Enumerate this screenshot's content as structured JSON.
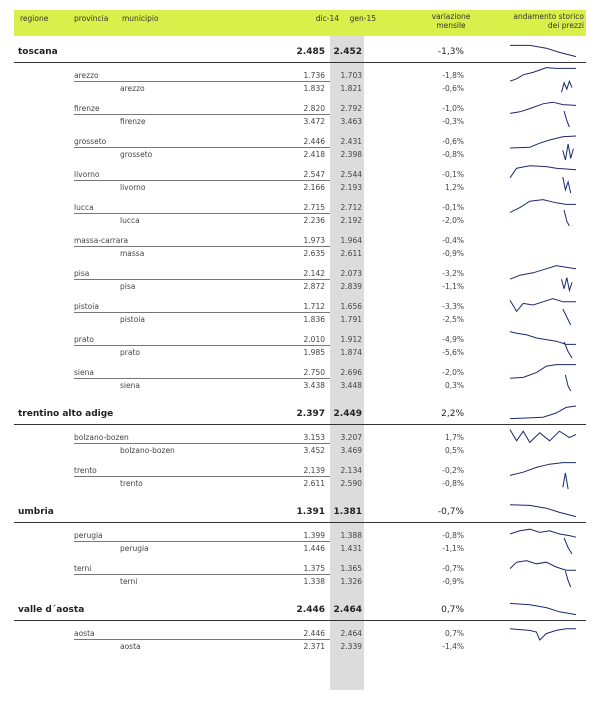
{
  "columns": {
    "regione": "regione",
    "provincia": "provincia",
    "municipio": "municipio",
    "dic14": "dic-14",
    "gen15": "gen-15",
    "variazione_l1": "variazione",
    "variazione_l2": "mensile",
    "andamento_l1": "andamento storico",
    "andamento_l2": "dei prezzi"
  },
  "rows": [
    {
      "type": "regione",
      "label": "toscana",
      "dic14": "2.485",
      "gen15": "2.452",
      "var": "-1,3%",
      "neg": true,
      "spark": [
        [
          0,
          0.1
        ],
        [
          0.3,
          0.1
        ],
        [
          0.55,
          0.3
        ],
        [
          0.75,
          0.6
        ],
        [
          1,
          0.9
        ]
      ]
    },
    {
      "type": "provincia",
      "label": "arezzo",
      "dic14": "1.736",
      "gen15": "1.703",
      "var": "-1,8%",
      "neg": true,
      "spark": [
        [
          0,
          0.95
        ],
        [
          0.1,
          0.8
        ],
        [
          0.2,
          0.55
        ],
        [
          0.35,
          0.4
        ],
        [
          0.55,
          0.1
        ],
        [
          0.7,
          0.15
        ],
        [
          0.85,
          0.15
        ],
        [
          1,
          0.15
        ]
      ]
    },
    {
      "type": "municipio",
      "label": "arezzo",
      "dic14": "1.832",
      "gen15": "1.821",
      "var": "-0,6%",
      "neg": true,
      "spark": [
        [
          0.78,
          0.9
        ],
        [
          0.82,
          0.3
        ],
        [
          0.86,
          0.7
        ],
        [
          0.9,
          0.2
        ],
        [
          0.94,
          0.6
        ]
      ]
    },
    {
      "type": "provincia",
      "label": "firenze",
      "dic14": "2.820",
      "gen15": "2.792",
      "var": "-1,0%",
      "neg": true,
      "spark": [
        [
          0,
          0.9
        ],
        [
          0.15,
          0.8
        ],
        [
          0.3,
          0.6
        ],
        [
          0.5,
          0.3
        ],
        [
          0.65,
          0.2
        ],
        [
          0.8,
          0.35
        ],
        [
          1,
          0.4
        ]
      ]
    },
    {
      "type": "municipio",
      "label": "firenze",
      "dic14": "3.472",
      "gen15": "3.463",
      "var": "-0,3%",
      "neg": true,
      "spark": [
        [
          0.82,
          0.0
        ],
        [
          0.86,
          0.6
        ],
        [
          0.9,
          1.0
        ]
      ]
    },
    {
      "type": "provincia",
      "label": "grosseto",
      "dic14": "2.446",
      "gen15": "2.431",
      "var": "-0,6%",
      "neg": true,
      "spark": [
        [
          0,
          1
        ],
        [
          0.3,
          0.95
        ],
        [
          0.45,
          0.7
        ],
        [
          0.6,
          0.5
        ],
        [
          0.8,
          0.3
        ],
        [
          1,
          0.25
        ]
      ]
    },
    {
      "type": "municipio",
      "label": "grosseto",
      "dic14": "2.418",
      "gen15": "2.398",
      "var": "-0,8%",
      "neg": true,
      "spark": [
        [
          0.8,
          0.4
        ],
        [
          0.84,
          1.0
        ],
        [
          0.88,
          0.0
        ],
        [
          0.92,
          0.9
        ],
        [
          0.96,
          0.3
        ]
      ]
    },
    {
      "type": "provincia",
      "label": "livorno",
      "dic14": "2.547",
      "gen15": "2.544",
      "var": "-0,1%",
      "neg": true,
      "spark": [
        [
          0,
          0.8
        ],
        [
          0.1,
          0.2
        ],
        [
          0.3,
          0.05
        ],
        [
          0.55,
          0.1
        ],
        [
          0.7,
          0.2
        ],
        [
          0.85,
          0.25
        ],
        [
          1,
          0.3
        ]
      ]
    },
    {
      "type": "municipio",
      "label": "livorno",
      "dic14": "2.166",
      "gen15": "2.193",
      "var": "1,2%",
      "neg": false,
      "spark": [
        [
          0.8,
          0.0
        ],
        [
          0.84,
          0.8
        ],
        [
          0.88,
          0.3
        ],
        [
          0.92,
          1.0
        ]
      ]
    },
    {
      "type": "provincia",
      "label": "lucca",
      "dic14": "2.715",
      "gen15": "2.712",
      "var": "-0,1%",
      "neg": true,
      "spark": [
        [
          0,
          0.9
        ],
        [
          0.15,
          0.6
        ],
        [
          0.3,
          0.2
        ],
        [
          0.5,
          0.1
        ],
        [
          0.7,
          0.3
        ],
        [
          0.85,
          0.4
        ],
        [
          1,
          0.4
        ]
      ]
    },
    {
      "type": "municipio",
      "label": "lucca",
      "dic14": "2.236",
      "gen15": "2.192",
      "var": "-2,0%",
      "neg": true,
      "spark": [
        [
          0.82,
          0.0
        ],
        [
          0.86,
          0.7
        ],
        [
          0.9,
          1.0
        ]
      ]
    },
    {
      "type": "provincia",
      "label": "massa-carrara",
      "dic14": "1.973",
      "gen15": "1.964",
      "var": "-0,4%",
      "neg": true,
      "spark": null
    },
    {
      "type": "municipio",
      "label": "massa",
      "dic14": "2.635",
      "gen15": "2.611",
      "var": "-0,9%",
      "neg": true,
      "spark": null
    },
    {
      "type": "provincia",
      "label": "pisa",
      "dic14": "2.142",
      "gen15": "2.073",
      "var": "-3,2%",
      "neg": true,
      "spark": [
        [
          0,
          0.95
        ],
        [
          0.15,
          0.7
        ],
        [
          0.35,
          0.55
        ],
        [
          0.55,
          0.3
        ],
        [
          0.7,
          0.1
        ],
        [
          0.85,
          0.2
        ],
        [
          1,
          0.3
        ]
      ]
    },
    {
      "type": "municipio",
      "label": "pisa",
      "dic14": "2.872",
      "gen15": "2.839",
      "var": "-1,1%",
      "neg": true,
      "spark": [
        [
          0.78,
          0.2
        ],
        [
          0.82,
          0.8
        ],
        [
          0.86,
          0.1
        ],
        [
          0.9,
          0.9
        ],
        [
          0.94,
          0.4
        ]
      ]
    },
    {
      "type": "provincia",
      "label": "pistoia",
      "dic14": "1.712",
      "gen15": "1.656",
      "var": "-3,3%",
      "neg": true,
      "spark": [
        [
          0,
          0.2
        ],
        [
          0.1,
          0.9
        ],
        [
          0.2,
          0.4
        ],
        [
          0.35,
          0.5
        ],
        [
          0.5,
          0.3
        ],
        [
          0.65,
          0.1
        ],
        [
          0.8,
          0.3
        ],
        [
          1,
          0.3
        ]
      ]
    },
    {
      "type": "municipio",
      "label": "pistoia",
      "dic14": "1.836",
      "gen15": "1.791",
      "var": "-2,5%",
      "neg": true,
      "spark": [
        [
          0.8,
          0.0
        ],
        [
          0.86,
          0.5
        ],
        [
          0.92,
          1.0
        ]
      ]
    },
    {
      "type": "provincia",
      "label": "prato",
      "dic14": "2.010",
      "gen15": "1.912",
      "var": "-4,9%",
      "neg": true,
      "spark": [
        [
          0,
          0.1
        ],
        [
          0.1,
          0.2
        ],
        [
          0.25,
          0.3
        ],
        [
          0.4,
          0.5
        ],
        [
          0.55,
          0.6
        ],
        [
          0.7,
          0.7
        ],
        [
          0.85,
          0.9
        ],
        [
          1,
          0.9
        ]
      ]
    },
    {
      "type": "municipio",
      "label": "prato",
      "dic14": "1.985",
      "gen15": "1.874",
      "var": "-5,6%",
      "neg": true,
      "spark": [
        [
          0.82,
          0.0
        ],
        [
          0.88,
          0.6
        ],
        [
          0.94,
          1.0
        ]
      ]
    },
    {
      "type": "provincia",
      "label": "siena",
      "dic14": "2.750",
      "gen15": "2.696",
      "var": "-2,0%",
      "neg": true,
      "spark": [
        [
          0,
          0.95
        ],
        [
          0.2,
          0.9
        ],
        [
          0.4,
          0.6
        ],
        [
          0.55,
          0.2
        ],
        [
          0.7,
          0.1
        ],
        [
          0.85,
          0.1
        ],
        [
          1,
          0.1
        ]
      ]
    },
    {
      "type": "municipio",
      "label": "siena",
      "dic14": "3.438",
      "gen15": "3.448",
      "var": "0,3%",
      "neg": false,
      "spark": [
        [
          0.84,
          0.0
        ],
        [
          0.88,
          0.7
        ],
        [
          0.92,
          1.0
        ]
      ]
    },
    {
      "type": "regione",
      "label": "trentino alto adige",
      "dic14": "2.397",
      "gen15": "2.449",
      "var": "2,2%",
      "neg": false,
      "spark": [
        [
          0,
          0.9
        ],
        [
          0.3,
          0.85
        ],
        [
          0.5,
          0.8
        ],
        [
          0.7,
          0.5
        ],
        [
          0.85,
          0.1
        ],
        [
          1,
          0.0
        ]
      ]
    },
    {
      "type": "provincia",
      "label": "bolzano-bozen",
      "dic14": "3.153",
      "gen15": "3.207",
      "var": "1,7%",
      "neg": false,
      "spark": [
        [
          0,
          0.1
        ],
        [
          0.1,
          0.8
        ],
        [
          0.2,
          0.2
        ],
        [
          0.3,
          0.9
        ],
        [
          0.45,
          0.3
        ],
        [
          0.6,
          0.8
        ],
        [
          0.75,
          0.2
        ],
        [
          0.9,
          0.6
        ],
        [
          1,
          0.4
        ]
      ]
    },
    {
      "type": "municipio",
      "label": "bolzano-bozen",
      "dic14": "3.452",
      "gen15": "3.469",
      "var": "0,5%",
      "neg": false,
      "spark": null
    },
    {
      "type": "provincia",
      "label": "trento",
      "dic14": "2.139",
      "gen15": "2.134",
      "var": "-0,2%",
      "neg": true,
      "spark": [
        [
          0,
          0.9
        ],
        [
          0.2,
          0.7
        ],
        [
          0.4,
          0.4
        ],
        [
          0.6,
          0.2
        ],
        [
          0.8,
          0.1
        ],
        [
          1,
          0.1
        ]
      ]
    },
    {
      "type": "municipio",
      "label": "trento",
      "dic14": "2.611",
      "gen15": "2.590",
      "var": "-0,8%",
      "neg": true,
      "spark": [
        [
          0.8,
          0.9
        ],
        [
          0.84,
          0.0
        ],
        [
          0.88,
          1.0
        ]
      ]
    },
    {
      "type": "regione",
      "label": "umbria",
      "dic14": "1.391",
      "gen15": "1.381",
      "var": "-0,7%",
      "neg": true,
      "spark": [
        [
          0,
          0.05
        ],
        [
          0.3,
          0.1
        ],
        [
          0.55,
          0.3
        ],
        [
          0.75,
          0.6
        ],
        [
          1,
          0.9
        ]
      ]
    },
    {
      "type": "provincia",
      "label": "perugia",
      "dic14": "1.399",
      "gen15": "1.388",
      "var": "-0,8%",
      "neg": true,
      "spark": [
        [
          0,
          0.5
        ],
        [
          0.15,
          0.3
        ],
        [
          0.3,
          0.2
        ],
        [
          0.45,
          0.4
        ],
        [
          0.6,
          0.3
        ],
        [
          0.75,
          0.5
        ],
        [
          0.9,
          0.6
        ],
        [
          1,
          0.7
        ]
      ]
    },
    {
      "type": "municipio",
      "label": "perugia",
      "dic14": "1.446",
      "gen15": "1.431",
      "var": "-1,1%",
      "neg": true,
      "spark": [
        [
          0.82,
          0.0
        ],
        [
          0.88,
          0.6
        ],
        [
          0.94,
          1.0
        ]
      ]
    },
    {
      "type": "provincia",
      "label": "terni",
      "dic14": "1.375",
      "gen15": "1.365",
      "var": "-0,7%",
      "neg": true,
      "spark": [
        [
          0,
          0.6
        ],
        [
          0.1,
          0.2
        ],
        [
          0.25,
          0.1
        ],
        [
          0.4,
          0.3
        ],
        [
          0.55,
          0.2
        ],
        [
          0.7,
          0.5
        ],
        [
          0.85,
          0.7
        ],
        [
          1,
          0.7
        ]
      ]
    },
    {
      "type": "municipio",
      "label": "terni",
      "dic14": "1.338",
      "gen15": "1.326",
      "var": "-0,9%",
      "neg": true,
      "spark": [
        [
          0.84,
          0.0
        ],
        [
          0.88,
          0.6
        ],
        [
          0.92,
          1.0
        ]
      ]
    },
    {
      "type": "regione",
      "label": "valle d´aosta",
      "dic14": "2.446",
      "gen15": "2.464",
      "var": "0,7%",
      "neg": false,
      "spark": [
        [
          0,
          0.1
        ],
        [
          0.3,
          0.2
        ],
        [
          0.55,
          0.4
        ],
        [
          0.75,
          0.7
        ],
        [
          1,
          0.9
        ]
      ]
    },
    {
      "type": "provincia",
      "label": "aosta",
      "dic14": "2.446",
      "gen15": "2.464",
      "var": "0,7%",
      "neg": false,
      "spark": [
        [
          0,
          0.3
        ],
        [
          0.15,
          0.35
        ],
        [
          0.3,
          0.4
        ],
        [
          0.4,
          0.5
        ],
        [
          0.45,
          1.0
        ],
        [
          0.55,
          0.6
        ],
        [
          0.7,
          0.4
        ],
        [
          0.85,
          0.3
        ],
        [
          1,
          0.3
        ]
      ]
    },
    {
      "type": "municipio",
      "label": "aosta",
      "dic14": "2.371",
      "gen15": "2.339",
      "var": "-1,4%",
      "neg": true,
      "spark": null
    }
  ]
}
